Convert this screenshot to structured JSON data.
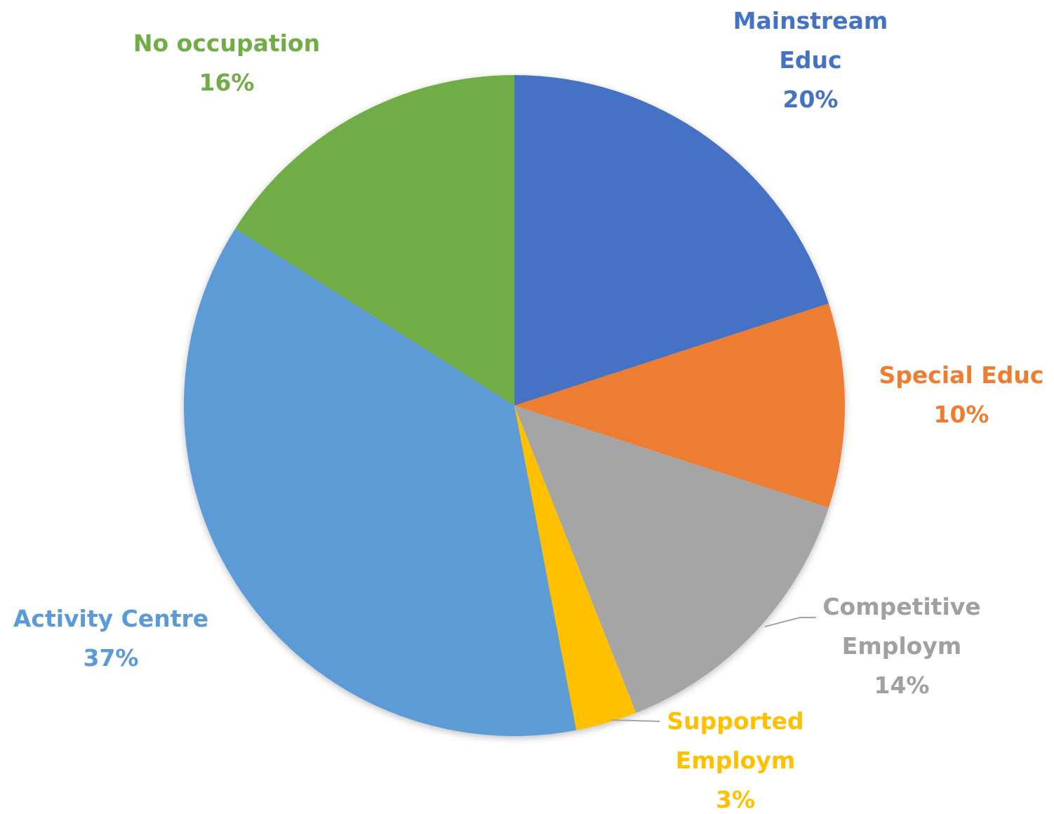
{
  "chart_data": {
    "type": "pie",
    "categories": [
      "Mainstream Educ",
      "Special Educ",
      "Competitive Employm",
      "Supported Employm",
      "Activity Centre",
      "No occupation"
    ],
    "values": [
      20,
      10,
      14,
      3,
      37,
      16
    ],
    "value_labels": [
      "20%",
      "10%",
      "14%",
      "3%",
      "37%",
      "16%"
    ],
    "colors": [
      "#4472c4",
      "#ed7d31",
      "#a5a5a5",
      "#ffc000",
      "#5b9bd5",
      "#70ad47"
    ]
  }
}
